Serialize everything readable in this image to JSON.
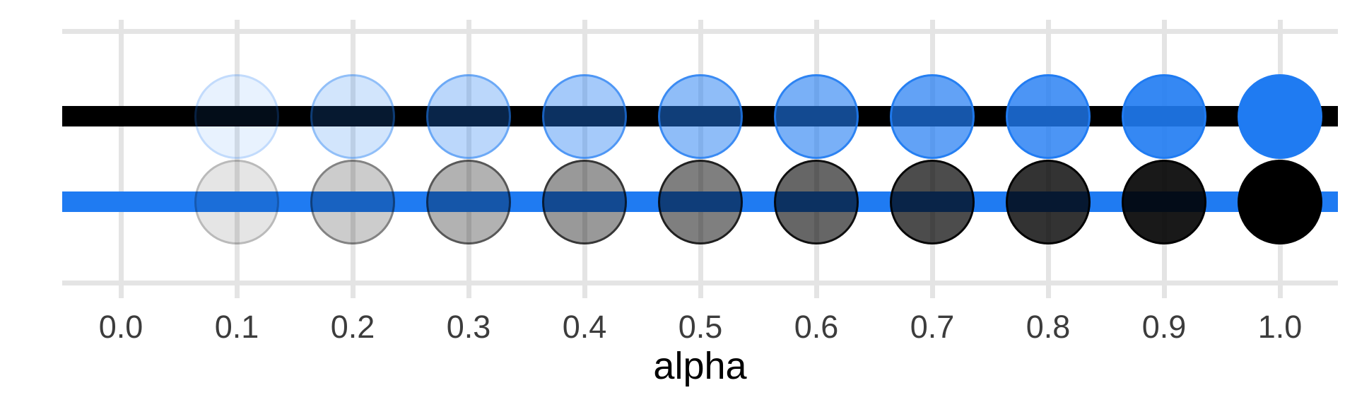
{
  "chart_data": {
    "type": "scatter",
    "title": "",
    "xlabel": "alpha",
    "ylabel": "",
    "xlim": [
      -0.05,
      1.05
    ],
    "x_ticks": [
      "0.0",
      "0.1",
      "0.2",
      "0.3",
      "0.4",
      "0.5",
      "0.6",
      "0.7",
      "0.8",
      "0.9",
      "1.0"
    ],
    "x_tick_values": [
      0,
      0.1,
      0.2,
      0.3,
      0.4,
      0.5,
      0.6,
      0.7,
      0.8,
      0.9,
      1.0
    ],
    "grid": "light-gray vertical gridlines at each tick, horizontal gridlines above top row and at panel bottom",
    "legend": false,
    "series": [
      {
        "name": "blue-points-on-black-line",
        "row": 2,
        "line_color": "#000000",
        "point_color": "#1F7BF2",
        "x": [
          0.1,
          0.2,
          0.3,
          0.4,
          0.5,
          0.6,
          0.7,
          0.8,
          0.9,
          1.0
        ],
        "alpha": [
          0.1,
          0.2,
          0.3,
          0.4,
          0.5,
          0.6,
          0.7,
          0.8,
          0.9,
          1.0
        ]
      },
      {
        "name": "black-points-on-blue-line",
        "row": 1,
        "line_color": "#1F7BF2",
        "point_color": "#000000",
        "x": [
          0.1,
          0.2,
          0.3,
          0.4,
          0.5,
          0.6,
          0.7,
          0.8,
          0.9,
          1.0
        ],
        "alpha": [
          0.1,
          0.2,
          0.3,
          0.4,
          0.5,
          0.6,
          0.7,
          0.8,
          0.9,
          1.0
        ]
      }
    ],
    "colors": {
      "background": "#FFFFFF",
      "gridline": "#E4E4E4",
      "tick_label": "#3C3C3C",
      "axis_title": "#000000",
      "blue": "#1F7BF2",
      "black": "#000000"
    }
  }
}
